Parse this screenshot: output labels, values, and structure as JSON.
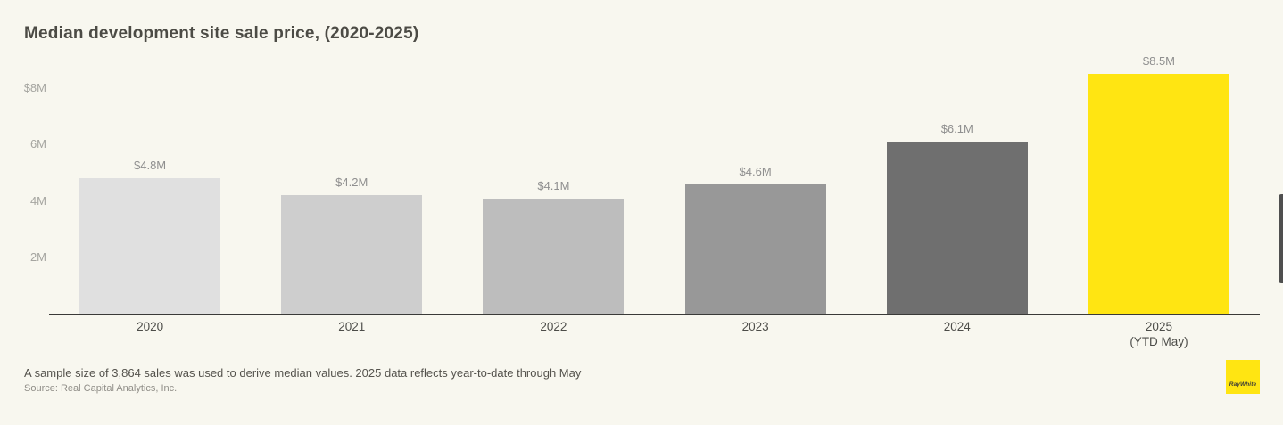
{
  "title": "Median development site sale price, (2020-2025)",
  "chart_data": {
    "type": "bar",
    "title": "Median development site sale price, (2020-2025)",
    "categories": [
      "2020",
      "2021",
      "2022",
      "2023",
      "2024",
      "2025"
    ],
    "category_sublabels": [
      "",
      "",
      "",
      "",
      "",
      "(YTD May)"
    ],
    "values": [
      4.8,
      4.2,
      4.1,
      4.6,
      6.1,
      8.5
    ],
    "value_labels": [
      "$4.8M",
      "$4.2M",
      "$4.1M",
      "$4.6M",
      "$6.1M",
      "$8.5M"
    ],
    "bar_colors": [
      "#e0e0e0",
      "#cecece",
      "#bdbdbd",
      "#989898",
      "#6f6f6f",
      "#ffe512"
    ],
    "xlabel": "",
    "ylabel": "",
    "ylim": [
      0,
      8.9
    ],
    "yticks": [
      {
        "value": 8,
        "label": "$8M"
      },
      {
        "value": 6,
        "label": "6M"
      },
      {
        "value": 4,
        "label": "4M"
      },
      {
        "value": 2,
        "label": "2M"
      }
    ],
    "grid": false,
    "legend": "none",
    "unit": "million USD"
  },
  "footer": {
    "note": "A sample size of 3,864 sales was used to derive median values. 2025 data reflects year-to-date through May",
    "source": "Source: Real Capital Analytics, Inc."
  },
  "logo": {
    "text": "RayWhite",
    "color": "#ffe512"
  },
  "colors": {
    "background": "#f8f7ef",
    "axis": "#3a3a38",
    "accent_yellow": "#ffe512",
    "title_text": "#4c4b45",
    "tick_text": "#a5a5a0",
    "value_label_text": "#8f8f8f"
  }
}
